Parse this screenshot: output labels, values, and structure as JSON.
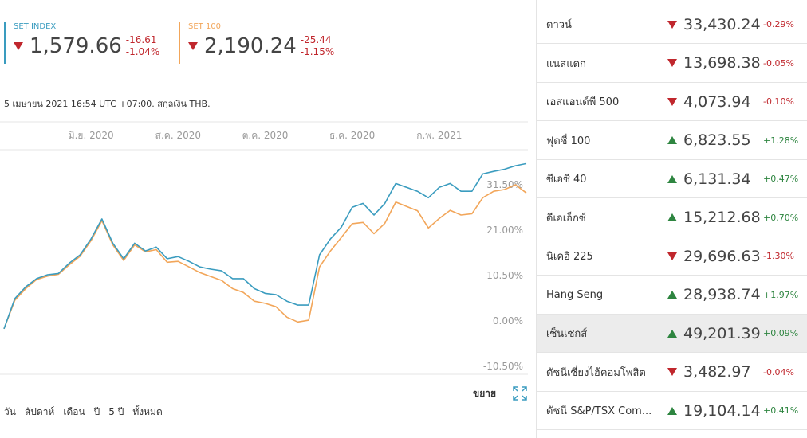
{
  "chart_data": {
    "type": "line",
    "categories": [
      null,
      null,
      null,
      null,
      null,
      null,
      null,
      null,
      "มิ.ย. 2020",
      null,
      null,
      null,
      null,
      null,
      null,
      null,
      "ส.ค. 2020",
      null,
      null,
      null,
      null,
      null,
      null,
      null,
      "ต.ค. 2020",
      null,
      null,
      null,
      null,
      null,
      null,
      null,
      "ธ.ค. 2020",
      null,
      null,
      null,
      null,
      null,
      null,
      null,
      "ก.พ. 2021",
      null,
      null,
      null,
      null,
      null,
      null,
      null,
      null
    ],
    "series": [
      {
        "name": "SET INDEX",
        "color": "#3a9cbf",
        "last": "1,579.66",
        "change": "-16.61",
        "percent": "-1.04%",
        "values": [
          0,
          7,
          9.7,
          11.6,
          12.5,
          12.8,
          15.2,
          17.1,
          20.8,
          25.4,
          19.8,
          16.2,
          19.8,
          18,
          18.9,
          16.2,
          16.7,
          15.6,
          14.3,
          13.8,
          13.4,
          11.6,
          11.6,
          9.3,
          8.2,
          7.9,
          6.4,
          5.5,
          5.5,
          17.1,
          20.8,
          23.5,
          28.1,
          29,
          26.3,
          29,
          33.6,
          32.7,
          31.8,
          30.3,
          32.7,
          33.6,
          31.8,
          31.8,
          35.8,
          36.4,
          36.9,
          37.7,
          38.2
        ]
      },
      {
        "name": "SET 100",
        "color": "#f2a65a",
        "last": "2,190.24",
        "change": "-25.44",
        "percent": "-1.15%",
        "values": [
          0,
          6.6,
          9.3,
          11.4,
          12.2,
          12.6,
          14.8,
          16.8,
          20.4,
          25,
          19.4,
          15.8,
          19.4,
          17.8,
          18.3,
          15.4,
          15.6,
          14.3,
          13,
          12.1,
          11.2,
          9.3,
          8.4,
          6.4,
          5.9,
          5.1,
          2.7,
          1.6,
          2,
          14.3,
          18,
          21.1,
          24.3,
          24.6,
          22,
          24.4,
          29.3,
          28.3,
          27.3,
          23.3,
          25.5,
          27.4,
          26.3,
          26.6,
          30.3,
          31.8,
          32.2,
          33.3,
          31.4
        ]
      }
    ],
    "ylim": [
      -10.5,
      41.4
    ],
    "yticks": [
      {
        "value": 31.5,
        "label": "31.50%"
      },
      {
        "value": 21,
        "label": "21.00%"
      },
      {
        "value": 10.5,
        "label": "10.50%"
      },
      {
        "value": 0,
        "label": "0.00%"
      },
      {
        "value": -10.5,
        "label": "-10.50%"
      }
    ],
    "grid": false
  },
  "timestamp": "5 เมษายน 2021 16:54 UTC +07:00. สกุลเงิน THB.",
  "expand": "ขยาย",
  "ranges": [
    "วัน",
    "สัปดาห์",
    "เดือน",
    "ปี",
    "5 ปี",
    "ทั้งหมด"
  ],
  "markets": {
    "highlighted": 8,
    "rows": [
      {
        "name": "ดาวน์",
        "value": "33,430.24",
        "change": "-0.29%"
      },
      {
        "name": "แนสแดก",
        "value": "13,698.38",
        "change": "-0.05%"
      },
      {
        "name": "เอสแอนด์พี 500",
        "value": "4,073.94",
        "change": "-0.10%"
      },
      {
        "name": "ฟุตซี่ 100",
        "value": "6,823.55",
        "change": "+1.28%"
      },
      {
        "name": "ซีเอซี 40",
        "value": "6,131.34",
        "change": "+0.47%"
      },
      {
        "name": "ดีเอเอ็กซ์",
        "value": "15,212.68",
        "change": "+0.70%"
      },
      {
        "name": "นิเคอิ 225",
        "value": "29,696.63",
        "change": "-1.30%"
      },
      {
        "name": "Hang Seng",
        "value": "28,938.74",
        "change": "+1.97%"
      },
      {
        "name": "เซ็นเซกส์",
        "value": "49,201.39",
        "change": "+0.09%"
      },
      {
        "name": "ดัชนีเซี่ยงไฮ้คอมโพสิต",
        "value": "3,482.97",
        "change": "-0.04%"
      },
      {
        "name": "ดัชนี S&P/TSX Com...",
        "value": "19,104.14",
        "change": "+0.41%"
      }
    ]
  }
}
